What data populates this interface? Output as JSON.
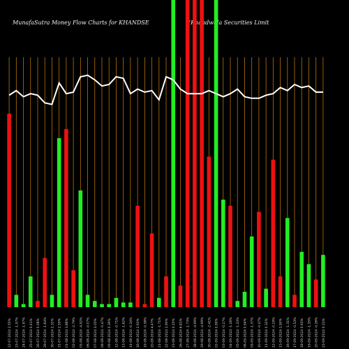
{
  "header": {
    "title_left": "MunafaSutra  Money Flow  Charts for KHANDSE",
    "title_right": "(Khandwala  Securities Limit"
  },
  "chart_data": {
    "type": "bar",
    "title": "MunafaSutra Money Flow Charts for KHANDSE",
    "subtitle": "(Khandwala Securities Limit",
    "background": "#000000",
    "grid_color": "#b8740e",
    "colors": {
      "up": "#22ee22",
      "down": "#ee1111",
      "line": "#ffffff"
    },
    "ylim": [
      0,
      100
    ],
    "grid": true,
    "categories": [
      "22-07-2024 2.55%",
      "23-07-2024 -1.57%",
      "24-07-2024 -1.97%",
      "25-07-2024 0.41%",
      "26-07-2024 0.08%",
      "29-07-2024 -1.64%",
      "30-07-2024 2.32%",
      "31-07-2024 2.59%",
      "01-08-2024 3.88%",
      "02-08-2024 -2.79%",
      "05-08-2024 -4.92%",
      "06-08-2024 -0.07%",
      "07-08-2024 3.05%",
      "08-08-2024 -0.47%",
      "09-08-2024 0.39%",
      "12-08-2024 -0.71%",
      "13-08-2024 -1.62%",
      "14-08-2024 -0.34%",
      "16-08-2024 2.93%",
      "19-08-2024 -0.38%",
      "20-08-2024 4.47%",
      "21-08-2024 -1.71%",
      "22-08-2024 1.90%",
      "23-08-2024 0.15%",
      "26-08-2024 6.81%",
      "27-08-2024 -1.73%",
      "28-08-2024 -4.99%",
      "29-08-2024 -4.99%",
      "30-08-2024 -2.41%",
      "02-09-2024 0.99%",
      "03-09-2024 -0.17%",
      "04-09-2024 -1.16%",
      "05-09-2024 -1.33%",
      "06-09-2024 0.94%",
      "09-09-2024 -1.37%",
      "10-09-2024 -0.47%",
      "11-09-2024 0.32%",
      "12-09-2024 -0.19%",
      "13-09-2024 1.90%",
      "16-09-2024 -1.31%",
      "17-09-2024 -0.53%",
      "18-09-2024 0.93%",
      "19-09-2024 -1.35%",
      "20-09-2024 -0.26%",
      "23-09-2024 0.31%"
    ],
    "bar_colors": [
      "down",
      "up",
      "up",
      "up",
      "down",
      "down",
      "up",
      "up",
      "down",
      "down",
      "up",
      "up",
      "up",
      "up",
      "up",
      "up",
      "up",
      "up",
      "down",
      "down",
      "down",
      "up",
      "down",
      "up",
      "down",
      "down",
      "down",
      "down",
      "down",
      "up",
      "up",
      "down",
      "up",
      "up",
      "up",
      "down",
      "up",
      "down",
      "down",
      "up",
      "down",
      "up",
      "up",
      "down",
      "up"
    ],
    "values": [
      63,
      4,
      1,
      10,
      2,
      16,
      4,
      55,
      58,
      12,
      38,
      4,
      2,
      1,
      1,
      3,
      1.5,
      1.5,
      33,
      1,
      24,
      3,
      10,
      100,
      7,
      100,
      100,
      100,
      49,
      100,
      35,
      33,
      2,
      5,
      23,
      31,
      6,
      48,
      10,
      29,
      4,
      18,
      14,
      9,
      17
    ],
    "line_values": [
      69,
      70.5,
      68.5,
      69.5,
      69,
      66.5,
      66,
      73,
      69.5,
      70,
      75,
      75.5,
      74,
      72,
      72.5,
      75,
      74.5,
      69.5,
      71,
      70,
      70.5,
      67.5,
      75,
      74,
      71,
      69.5,
      69.5,
      69.5,
      70.5,
      69.5,
      68.5,
      69.5,
      71,
      68.5,
      68,
      68,
      69,
      69.5,
      71.5,
      70.5,
      72.5,
      71.5,
      72,
      70,
      70
    ]
  }
}
